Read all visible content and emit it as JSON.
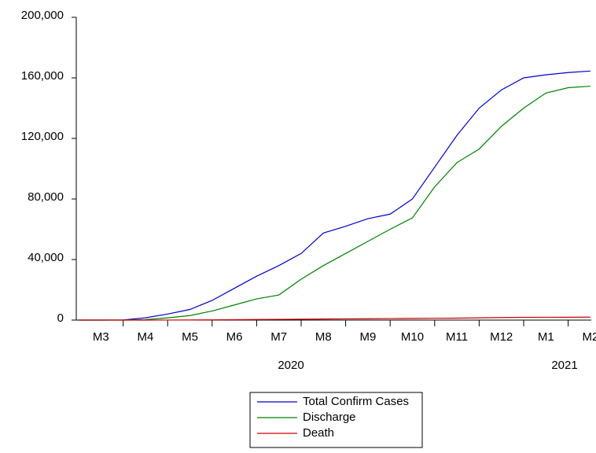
{
  "chart_data": {
    "type": "line",
    "categories": [
      null,
      "M3",
      null,
      "M4",
      null,
      "M5",
      null,
      "M6",
      null,
      "M7",
      null,
      "M8",
      null,
      "M9",
      null,
      "M10",
      null,
      "M11",
      null,
      "M12",
      null,
      "M1",
      null,
      "M2"
    ],
    "year_labels": [
      "2020",
      "2021"
    ],
    "series": [
      {
        "name": "Total Confirm Cases",
        "color": "#0000cc",
        "values": [
          0,
          0,
          100,
          1500,
          4000,
          7000,
          13000,
          21000,
          29000,
          36000,
          44000,
          57500,
          62000,
          67000,
          70000,
          80000,
          101000,
          122000,
          140000,
          152000,
          160000,
          162000,
          163500,
          164500
        ]
      },
      {
        "name": "Discharge",
        "color": "#008000",
        "values": [
          0,
          0,
          0,
          300,
          1500,
          3000,
          6000,
          10000,
          14000,
          16600,
          27000,
          36000,
          44000,
          52000,
          60000,
          67500,
          88000,
          104000,
          113000,
          128000,
          140000,
          150000,
          153500,
          154500
        ]
      },
      {
        "name": "Death",
        "color": "#cc0000",
        "values": [
          0,
          0,
          0,
          5,
          30,
          80,
          150,
          250,
          400,
          500,
          600,
          700,
          800,
          900,
          1000,
          1100,
          1200,
          1300,
          1500,
          1700,
          1800,
          1850,
          1900,
          1950
        ]
      }
    ],
    "ylim": [
      0,
      200000
    ],
    "yticks": [
      0,
      {
        "value": 40000,
        "label": "40,000"
      },
      {
        "value": 80000,
        "label": "80,000"
      },
      {
        "value": 120000,
        "label": "120,000"
      },
      {
        "value": 160000,
        "label": "160,000"
      },
      {
        "value": 200000,
        "label": "200,000"
      }
    ],
    "legend": "bottom"
  }
}
